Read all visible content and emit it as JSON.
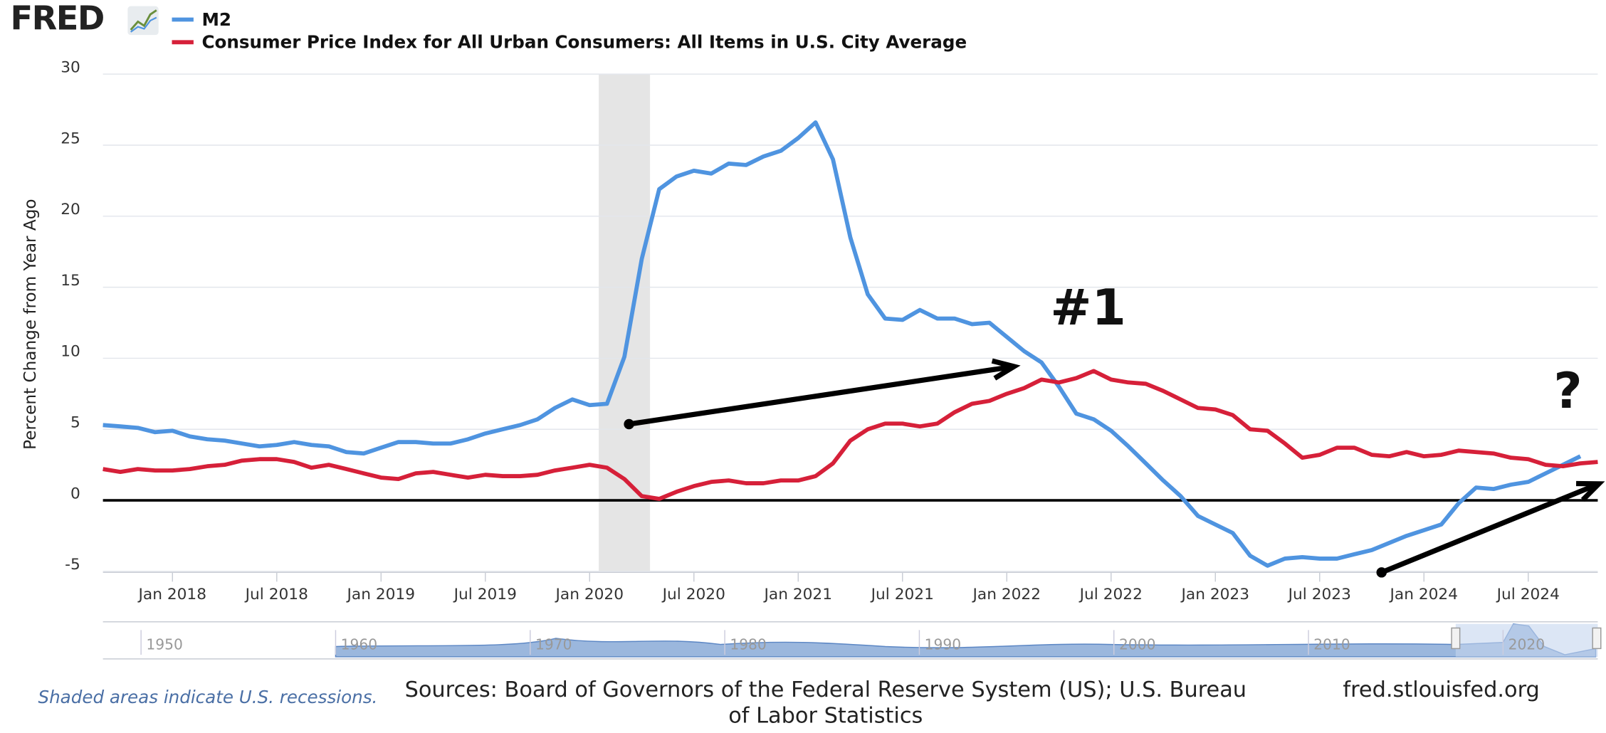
{
  "chart_data": {
    "type": "line",
    "logo": "FRED",
    "ylabel": "Percent Change from Year Ago",
    "x": [
      "2017-09",
      "2017-10",
      "2017-11",
      "2017-12",
      "2018-01",
      "2018-02",
      "2018-03",
      "2018-04",
      "2018-05",
      "2018-06",
      "2018-07",
      "2018-08",
      "2018-09",
      "2018-10",
      "2018-11",
      "2018-12",
      "2019-01",
      "2019-02",
      "2019-03",
      "2019-04",
      "2019-05",
      "2019-06",
      "2019-07",
      "2019-08",
      "2019-09",
      "2019-10",
      "2019-11",
      "2019-12",
      "2020-01",
      "2020-02",
      "2020-03",
      "2020-04",
      "2020-05",
      "2020-06",
      "2020-07",
      "2020-08",
      "2020-09",
      "2020-10",
      "2020-11",
      "2020-12",
      "2021-01",
      "2021-02",
      "2021-03",
      "2021-04",
      "2021-05",
      "2021-06",
      "2021-07",
      "2021-08",
      "2021-09",
      "2021-10",
      "2021-11",
      "2021-12",
      "2022-01",
      "2022-02",
      "2022-03",
      "2022-04",
      "2022-05",
      "2022-06",
      "2022-07",
      "2022-08",
      "2022-09",
      "2022-10",
      "2022-11",
      "2022-12",
      "2023-01",
      "2023-02",
      "2023-03",
      "2023-04",
      "2023-05",
      "2023-06",
      "2023-07",
      "2023-08",
      "2023-09",
      "2023-10",
      "2023-11",
      "2023-12",
      "2024-01",
      "2024-02",
      "2024-03",
      "2024-04",
      "2024-05",
      "2024-06",
      "2024-07",
      "2024-08",
      "2024-09",
      "2024-10",
      "2024-11"
    ],
    "series": [
      {
        "name": "M2",
        "color": "#4f94e0",
        "values": [
          5.3,
          5.2,
          5.1,
          4.8,
          4.9,
          4.5,
          4.3,
          4.2,
          4.0,
          3.8,
          3.9,
          4.1,
          3.9,
          3.8,
          3.4,
          3.3,
          3.7,
          4.1,
          4.1,
          4.0,
          4.0,
          4.3,
          4.7,
          5.0,
          5.3,
          5.7,
          6.5,
          7.1,
          6.7,
          6.8,
          10.1,
          17.0,
          21.9,
          22.8,
          23.2,
          23.0,
          23.7,
          23.6,
          24.2,
          24.6,
          25.5,
          26.6,
          24.0,
          18.5,
          14.5,
          12.8,
          12.7,
          13.4,
          12.8,
          12.8,
          12.4,
          12.5,
          11.5,
          10.5,
          9.7,
          8.0,
          6.1,
          5.7,
          4.9,
          3.8,
          2.6,
          1.4,
          0.3,
          -1.1,
          -1.7,
          -2.3,
          -3.9,
          -4.6,
          -4.1,
          -4.0,
          -4.1,
          -4.1,
          -3.8,
          -3.5,
          -3.0,
          -2.5,
          -2.1,
          -1.7,
          -0.2,
          0.9,
          0.8,
          1.1,
          1.3,
          1.9,
          2.5,
          3.1,
          null
        ]
      },
      {
        "name": "Consumer Price Index for All Urban Consumers: All Items in U.S. City Average",
        "color": "#d62039",
        "values": [
          2.2,
          2.0,
          2.2,
          2.1,
          2.1,
          2.2,
          2.4,
          2.5,
          2.8,
          2.9,
          2.9,
          2.7,
          2.3,
          2.5,
          2.2,
          1.9,
          1.6,
          1.5,
          1.9,
          2.0,
          1.8,
          1.6,
          1.8,
          1.7,
          1.7,
          1.8,
          2.1,
          2.3,
          2.5,
          2.3,
          1.5,
          0.3,
          0.1,
          0.6,
          1.0,
          1.3,
          1.4,
          1.2,
          1.2,
          1.4,
          1.4,
          1.7,
          2.6,
          4.2,
          5.0,
          5.4,
          5.4,
          5.2,
          5.4,
          6.2,
          6.8,
          7.0,
          7.5,
          7.9,
          8.5,
          8.3,
          8.6,
          9.1,
          8.5,
          8.3,
          8.2,
          7.7,
          7.1,
          6.5,
          6.4,
          6.0,
          5.0,
          4.9,
          4.0,
          3.0,
          3.2,
          3.7,
          3.7,
          3.2,
          3.1,
          3.4,
          3.1,
          3.2,
          3.5,
          3.4,
          3.3,
          3.0,
          2.9,
          2.5,
          2.4,
          2.6,
          2.7
        ]
      }
    ],
    "xlim": [
      "2017-09",
      "2024-11"
    ],
    "xticks": [
      {
        "value": "2018-01",
        "label": "Jan 2018"
      },
      {
        "value": "2018-07",
        "label": "Jul 2018"
      },
      {
        "value": "2019-01",
        "label": "Jan 2019"
      },
      {
        "value": "2019-07",
        "label": "Jul 2019"
      },
      {
        "value": "2020-01",
        "label": "Jan 2020"
      },
      {
        "value": "2020-07",
        "label": "Jul 2020"
      },
      {
        "value": "2021-01",
        "label": "Jan 2021"
      },
      {
        "value": "2021-07",
        "label": "Jul 2021"
      },
      {
        "value": "2022-01",
        "label": "Jan 2022"
      },
      {
        "value": "2022-07",
        "label": "Jul 2022"
      },
      {
        "value": "2023-01",
        "label": "Jan 2023"
      },
      {
        "value": "2023-07",
        "label": "Jul 2023"
      },
      {
        "value": "2024-01",
        "label": "Jan 2024"
      },
      {
        "value": "2024-07",
        "label": "Jul 2024"
      }
    ],
    "ylim": [
      -5,
      30
    ],
    "yticks": [
      -5,
      0,
      5,
      10,
      15,
      20,
      25,
      30
    ],
    "grid": true,
    "recessions": [
      [
        "2020-02",
        "2020-04"
      ]
    ],
    "annotations": [
      "#1",
      "?"
    ],
    "navigator": [
      "1950",
      "1960",
      "1970",
      "1980",
      "1990",
      "2000",
      "2010",
      "2020"
    ],
    "footer": {
      "note": "Shaded areas indicate U.S. recessions.",
      "sources": [
        "Sources: Board of Governors of the Federal Reserve System (US); U.S. Bureau",
        "of Labor Statistics"
      ],
      "site": "fred.stlouisfed.org"
    }
  }
}
